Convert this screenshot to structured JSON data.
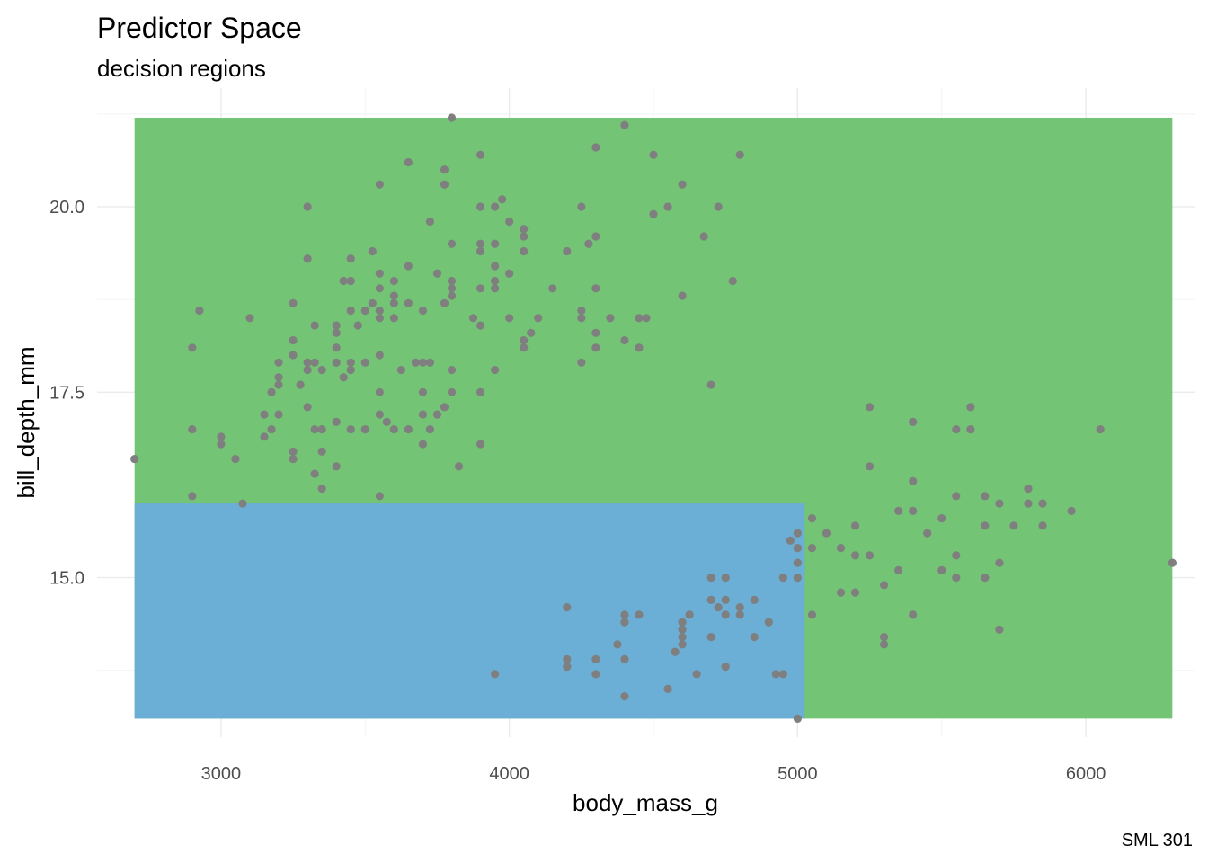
{
  "chart_data": {
    "type": "scatter",
    "title": "Predictor Space",
    "subtitle": "decision regions",
    "xlabel": "body_mass_g",
    "ylabel": "bill_depth_mm",
    "caption": "SML 301",
    "xlim": [
      2570,
      6380
    ],
    "ylim": [
      12.85,
      21.6
    ],
    "x_ticks": [
      3000,
      4000,
      5000,
      6000
    ],
    "x_tick_labels": [
      "3000",
      "4000",
      "5000",
      "6000"
    ],
    "y_ticks": [
      15.0,
      17.5,
      20.0
    ],
    "y_tick_labels": [
      "15.0",
      "17.5",
      "20.0"
    ],
    "grid": true,
    "colors": {
      "region_green": "#74c476",
      "region_blue": "#6baed6",
      "points": "#7f7f7f"
    },
    "regions": [
      {
        "label": "green",
        "x": [
          2700,
          6300
        ],
        "y": [
          13.1,
          21.2
        ],
        "color": "#74c476"
      },
      {
        "label": "blue",
        "x": [
          2700,
          5025
        ],
        "y": [
          13.1,
          16.0
        ],
        "color": "#6baed6"
      }
    ],
    "points": [
      [
        2700,
        16.6
      ],
      [
        2900,
        18.1
      ],
      [
        2925,
        18.6
      ],
      [
        2900,
        17.0
      ],
      [
        2900,
        16.1
      ],
      [
        3000,
        16.9
      ],
      [
        3000,
        16.8
      ],
      [
        3050,
        16.6
      ],
      [
        3075,
        16.0
      ],
      [
        3100,
        18.5
      ],
      [
        3150,
        17.2
      ],
      [
        3150,
        16.9
      ],
      [
        3175,
        17.0
      ],
      [
        3175,
        17.5
      ],
      [
        3200,
        17.6
      ],
      [
        3200,
        17.7
      ],
      [
        3200,
        17.9
      ],
      [
        3200,
        17.2
      ],
      [
        3250,
        18.7
      ],
      [
        3250,
        18.2
      ],
      [
        3250,
        18.0
      ],
      [
        3250,
        16.7
      ],
      [
        3250,
        16.6
      ],
      [
        3275,
        17.6
      ],
      [
        3300,
        20.0
      ],
      [
        3300,
        19.3
      ],
      [
        3300,
        17.9
      ],
      [
        3300,
        17.8
      ],
      [
        3300,
        17.3
      ],
      [
        3325,
        18.4
      ],
      [
        3325,
        17.9
      ],
      [
        3325,
        17.0
      ],
      [
        3325,
        16.4
      ],
      [
        3350,
        17.8
      ],
      [
        3350,
        17.0
      ],
      [
        3350,
        16.7
      ],
      [
        3350,
        16.2
      ],
      [
        3400,
        18.4
      ],
      [
        3400,
        18.3
      ],
      [
        3400,
        18.1
      ],
      [
        3400,
        17.9
      ],
      [
        3400,
        17.1
      ],
      [
        3400,
        16.5
      ],
      [
        3425,
        19.0
      ],
      [
        3425,
        17.7
      ],
      [
        3450,
        19.3
      ],
      [
        3450,
        19.0
      ],
      [
        3450,
        18.6
      ],
      [
        3450,
        17.9
      ],
      [
        3450,
        17.8
      ],
      [
        3450,
        17.0
      ],
      [
        3475,
        18.4
      ],
      [
        3500,
        18.6
      ],
      [
        3500,
        17.9
      ],
      [
        3500,
        17.0
      ],
      [
        3525,
        19.4
      ],
      [
        3525,
        18.7
      ],
      [
        3550,
        19.1
      ],
      [
        3550,
        18.9
      ],
      [
        3550,
        18.6
      ],
      [
        3550,
        18.5
      ],
      [
        3550,
        18.0
      ],
      [
        3550,
        17.5
      ],
      [
        3550,
        17.2
      ],
      [
        3550,
        16.1
      ],
      [
        3550,
        20.3
      ],
      [
        3575,
        17.1
      ],
      [
        3600,
        19.0
      ],
      [
        3600,
        18.7
      ],
      [
        3600,
        18.8
      ],
      [
        3600,
        18.5
      ],
      [
        3600,
        17.0
      ],
      [
        3625,
        17.8
      ],
      [
        3650,
        20.6
      ],
      [
        3650,
        19.2
      ],
      [
        3650,
        18.7
      ],
      [
        3650,
        17.0
      ],
      [
        3675,
        17.9
      ],
      [
        3700,
        18.6
      ],
      [
        3700,
        17.9
      ],
      [
        3700,
        17.5
      ],
      [
        3700,
        17.2
      ],
      [
        3700,
        16.8
      ],
      [
        3725,
        19.8
      ],
      [
        3725,
        17.0
      ],
      [
        3725,
        17.9
      ],
      [
        3750,
        19.1
      ],
      [
        3750,
        17.2
      ],
      [
        3775,
        20.5
      ],
      [
        3775,
        20.3
      ],
      [
        3775,
        18.7
      ],
      [
        3775,
        17.3
      ],
      [
        3800,
        21.2
      ],
      [
        3800,
        19.5
      ],
      [
        3800,
        19.0
      ],
      [
        3800,
        18.9
      ],
      [
        3800,
        18.8
      ],
      [
        3800,
        17.8
      ],
      [
        3800,
        17.5
      ],
      [
        3825,
        16.5
      ],
      [
        3900,
        20.7
      ],
      [
        3900,
        20.0
      ],
      [
        3900,
        19.5
      ],
      [
        3900,
        19.4
      ],
      [
        3900,
        18.9
      ],
      [
        3900,
        18.4
      ],
      [
        3900,
        17.5
      ],
      [
        3900,
        16.8
      ],
      [
        3875,
        18.5
      ],
      [
        3950,
        20.0
      ],
      [
        3950,
        19.5
      ],
      [
        3950,
        19.2
      ],
      [
        3950,
        19.0
      ],
      [
        3950,
        18.9
      ],
      [
        3950,
        17.8
      ],
      [
        3975,
        20.1
      ],
      [
        4000,
        19.8
      ],
      [
        4000,
        19.1
      ],
      [
        4000,
        18.5
      ],
      [
        4050,
        19.7
      ],
      [
        4050,
        19.6
      ],
      [
        4050,
        19.4
      ],
      [
        4050,
        18.2
      ],
      [
        4050,
        18.1
      ],
      [
        4075,
        18.3
      ],
      [
        4100,
        18.5
      ],
      [
        4150,
        18.9
      ],
      [
        4200,
        19.4
      ],
      [
        4250,
        20.0
      ],
      [
        4250,
        18.6
      ],
      [
        4250,
        18.5
      ],
      [
        4250,
        17.9
      ],
      [
        4275,
        19.5
      ],
      [
        4300,
        20.8
      ],
      [
        4300,
        19.6
      ],
      [
        4300,
        18.9
      ],
      [
        4300,
        18.3
      ],
      [
        4300,
        18.1
      ],
      [
        4350,
        18.5
      ],
      [
        4400,
        21.1
      ],
      [
        4400,
        18.2
      ],
      [
        4450,
        18.5
      ],
      [
        4450,
        18.1
      ],
      [
        4475,
        18.5
      ],
      [
        4500,
        20.7
      ],
      [
        4500,
        19.9
      ],
      [
        4550,
        20.0
      ],
      [
        4600,
        20.3
      ],
      [
        4600,
        18.8
      ],
      [
        4675,
        19.6
      ],
      [
        4700,
        17.6
      ],
      [
        4725,
        20.0
      ],
      [
        4775,
        19.0
      ],
      [
        4800,
        20.7
      ],
      [
        3950,
        13.7
      ],
      [
        4200,
        14.6
      ],
      [
        4200,
        13.9
      ],
      [
        4200,
        13.8
      ],
      [
        4300,
        13.9
      ],
      [
        4300,
        13.7
      ],
      [
        4375,
        14.1
      ],
      [
        4400,
        14.5
      ],
      [
        4400,
        14.4
      ],
      [
        4400,
        13.9
      ],
      [
        4400,
        13.4
      ],
      [
        4450,
        14.5
      ],
      [
        4550,
        13.5
      ],
      [
        4575,
        14.0
      ],
      [
        4600,
        14.4
      ],
      [
        4600,
        14.3
      ],
      [
        4600,
        14.2
      ],
      [
        4600,
        14.1
      ],
      [
        4625,
        14.5
      ],
      [
        4650,
        13.7
      ],
      [
        4700,
        15.0
      ],
      [
        4700,
        14.7
      ],
      [
        4700,
        14.2
      ],
      [
        4725,
        14.6
      ],
      [
        4750,
        15.0
      ],
      [
        4750,
        14.7
      ],
      [
        4750,
        14.5
      ],
      [
        4750,
        13.8
      ],
      [
        4800,
        14.6
      ],
      [
        4800,
        14.5
      ],
      [
        4850,
        14.7
      ],
      [
        4850,
        14.2
      ],
      [
        4900,
        14.4
      ],
      [
        4925,
        13.7
      ],
      [
        4950,
        15.0
      ],
      [
        4950,
        13.7
      ],
      [
        4975,
        15.5
      ],
      [
        5000,
        15.6
      ],
      [
        5000,
        15.4
      ],
      [
        5000,
        15.2
      ],
      [
        5000,
        15.0
      ],
      [
        5000,
        13.1
      ],
      [
        5050,
        15.8
      ],
      [
        5050,
        15.4
      ],
      [
        5050,
        14.5
      ],
      [
        5100,
        15.6
      ],
      [
        5150,
        14.8
      ],
      [
        5150,
        15.4
      ],
      [
        5200,
        15.7
      ],
      [
        5200,
        15.3
      ],
      [
        5200,
        14.8
      ],
      [
        5250,
        17.3
      ],
      [
        5250,
        16.5
      ],
      [
        5250,
        15.3
      ],
      [
        5300,
        14.9
      ],
      [
        5300,
        14.2
      ],
      [
        5300,
        14.1
      ],
      [
        5350,
        15.9
      ],
      [
        5350,
        15.1
      ],
      [
        5400,
        17.1
      ],
      [
        5400,
        16.3
      ],
      [
        5400,
        15.9
      ],
      [
        5400,
        14.5
      ],
      [
        5450,
        15.6
      ],
      [
        5500,
        15.8
      ],
      [
        5500,
        15.1
      ],
      [
        5550,
        17.0
      ],
      [
        5550,
        16.1
      ],
      [
        5550,
        15.3
      ],
      [
        5550,
        15.0
      ],
      [
        5600,
        17.3
      ],
      [
        5600,
        17.0
      ],
      [
        5650,
        16.1
      ],
      [
        5650,
        15.7
      ],
      [
        5650,
        15.0
      ],
      [
        5700,
        16.0
      ],
      [
        5700,
        15.2
      ],
      [
        5700,
        14.3
      ],
      [
        5750,
        15.7
      ],
      [
        5800,
        16.2
      ],
      [
        5800,
        16.0
      ],
      [
        5850,
        16.0
      ],
      [
        5850,
        15.7
      ],
      [
        5950,
        15.9
      ],
      [
        6050,
        17.0
      ],
      [
        6300,
        15.2
      ]
    ]
  }
}
